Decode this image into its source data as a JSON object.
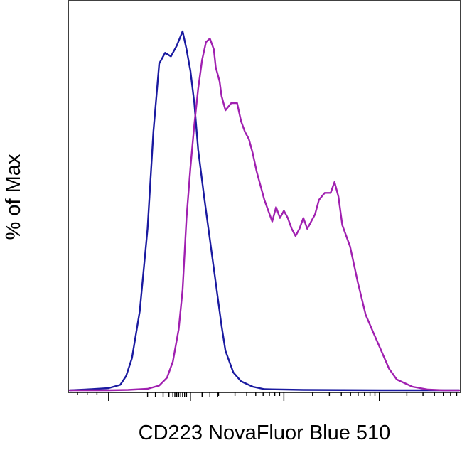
{
  "chart_data": {
    "type": "line",
    "title": "",
    "xlabel": "CD223 NovaFluor Blue 510",
    "ylabel": "% of Max",
    "xscale": "logicle",
    "x_tick_labels": [],
    "y_tick_labels": [],
    "xlim": [
      0,
      1
    ],
    "ylim": [
      0,
      100
    ],
    "grid": false,
    "legend": "none",
    "series": [
      {
        "color": "#1a1aa0",
        "x": [
          0.0,
          0.04,
          0.1,
          0.13,
          0.145,
          0.16,
          0.18,
          0.2,
          0.215,
          0.23,
          0.245,
          0.26,
          0.275,
          0.29,
          0.3,
          0.31,
          0.32,
          0.33,
          0.345,
          0.36,
          0.375,
          0.39,
          0.4,
          0.42,
          0.44,
          0.47,
          0.5,
          0.6,
          0.8,
          1.0
        ],
        "values": [
          0,
          0.2,
          0.6,
          1.5,
          4,
          9,
          22,
          45,
          72,
          91,
          94,
          93,
          96,
          100,
          95,
          89,
          80,
          67,
          54,
          42,
          30,
          18,
          11,
          5,
          2.5,
          1,
          0.3,
          0.1,
          0,
          0
        ]
      },
      {
        "color": "#a020b0",
        "x": [
          0.0,
          0.1,
          0.15,
          0.2,
          0.23,
          0.25,
          0.265,
          0.28,
          0.29,
          0.3,
          0.31,
          0.32,
          0.33,
          0.34,
          0.35,
          0.36,
          0.37,
          0.375,
          0.385,
          0.39,
          0.4,
          0.415,
          0.43,
          0.44,
          0.45,
          0.46,
          0.47,
          0.48,
          0.5,
          0.52,
          0.53,
          0.54,
          0.55,
          0.56,
          0.57,
          0.58,
          0.59,
          0.6,
          0.61,
          0.62,
          0.63,
          0.64,
          0.655,
          0.67,
          0.68,
          0.69,
          0.7,
          0.72,
          0.74,
          0.76,
          0.78,
          0.8,
          0.82,
          0.84,
          0.88,
          0.92,
          0.96,
          1.0
        ],
        "values": [
          0,
          0,
          0.1,
          0.4,
          1.3,
          3.5,
          8,
          17,
          28,
          48,
          62,
          74,
          84,
          92,
          97,
          98,
          95,
          90,
          86,
          82,
          78,
          80,
          80,
          75,
          72,
          70,
          66,
          61,
          53,
          47,
          51,
          48,
          50,
          48,
          45,
          43,
          45,
          48,
          45,
          47,
          49,
          53,
          55,
          55,
          58,
          54,
          46,
          40,
          30,
          21,
          16,
          11,
          6,
          3,
          1,
          0.2,
          0,
          0
        ]
      }
    ]
  }
}
